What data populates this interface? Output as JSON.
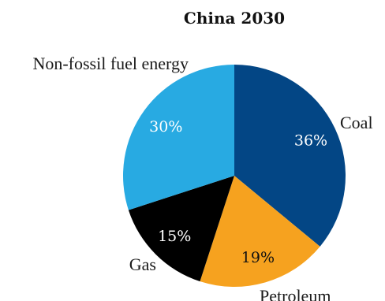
{
  "chart_data": {
    "type": "pie",
    "title": "China 2030",
    "slices": [
      {
        "label": "Coal",
        "value": 36,
        "value_label": "36%",
        "color": "#034685",
        "text_color": "#ffffff"
      },
      {
        "label": "Petroleum",
        "value": 19,
        "value_label": "19%",
        "color": "#f6a21f",
        "text_color": "#111111"
      },
      {
        "label": "Gas",
        "value": 15,
        "value_label": "15%",
        "color": "#000000",
        "text_color": "#ffffff"
      },
      {
        "label": "Non-fossil fuel energy",
        "value": 30,
        "value_label": "30%",
        "color": "#28aae2",
        "text_color": "#ffffff"
      }
    ],
    "start_angle": "12 o'clock",
    "direction": "clockwise",
    "legend": "none"
  }
}
